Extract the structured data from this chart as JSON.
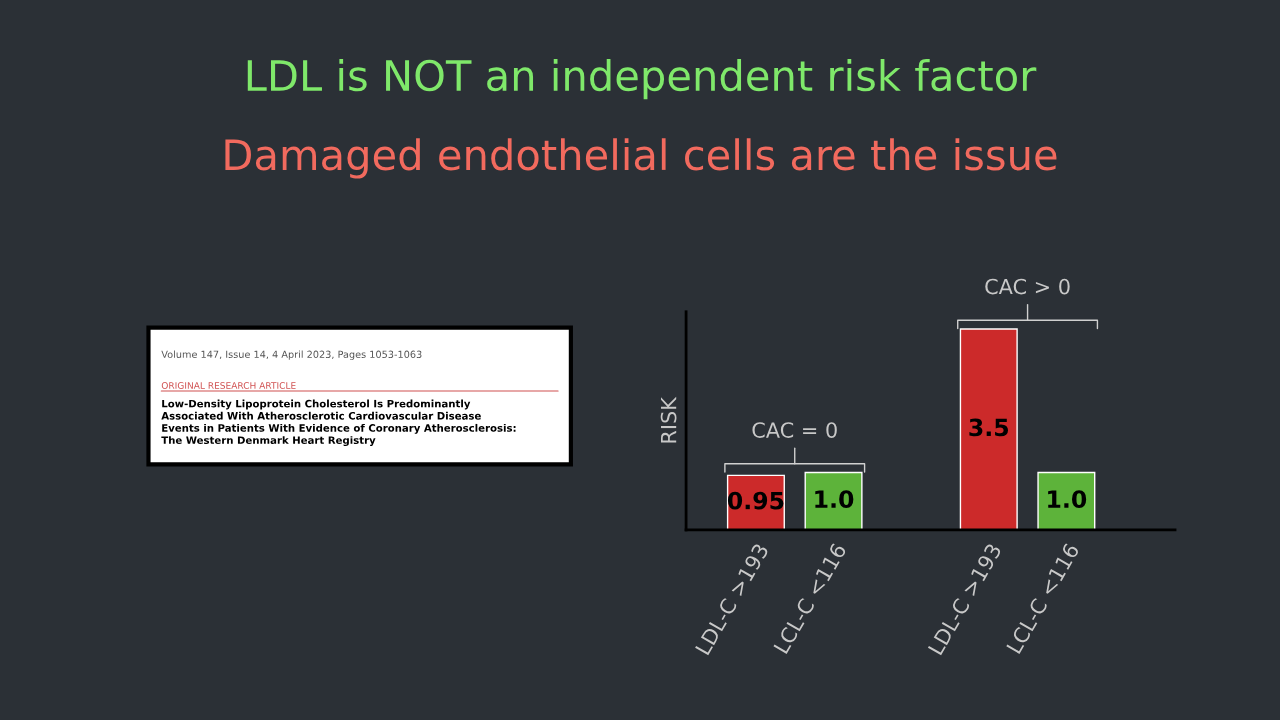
{
  "chart_data": {
    "type": "bar",
    "title": "LDL is NOT an independent risk factor",
    "subtitle": "Damaged endothelial cells are the issue",
    "ylabel": "RISK",
    "categories": [
      "LDL-C >193",
      "LCL-C <116",
      null,
      "LDL-C >193",
      "LCL-C <116"
    ],
    "values": [
      0.95,
      1.0,
      null,
      3.5,
      1.0
    ],
    "colors": [
      "#cc2a2a",
      "#5db33a",
      null,
      "#cc2a2a",
      "#5db33a"
    ],
    "value_labels": [
      "0.95",
      "1.0",
      null,
      "3.5",
      "1.0"
    ],
    "ylim": [
      0,
      3.8
    ],
    "tick_labels": "x",
    "grid": false,
    "legend": false,
    "annotations": [
      "CAC = 0",
      "CAC > 0",
      "Volume 147, Issue 14, 4 April 2023, Pages 1053-1063",
      "ORIGINAL RESEARCH ARTICLE",
      "Low-Density Lipoprotein Cholesterol Is Predominantly Associated With Atherosclerotic Cardiovascular Disease Events in Patients With Evidence of Coronary Atherosclerosis: The Western Denmark Heart Registry"
    ]
  }
}
